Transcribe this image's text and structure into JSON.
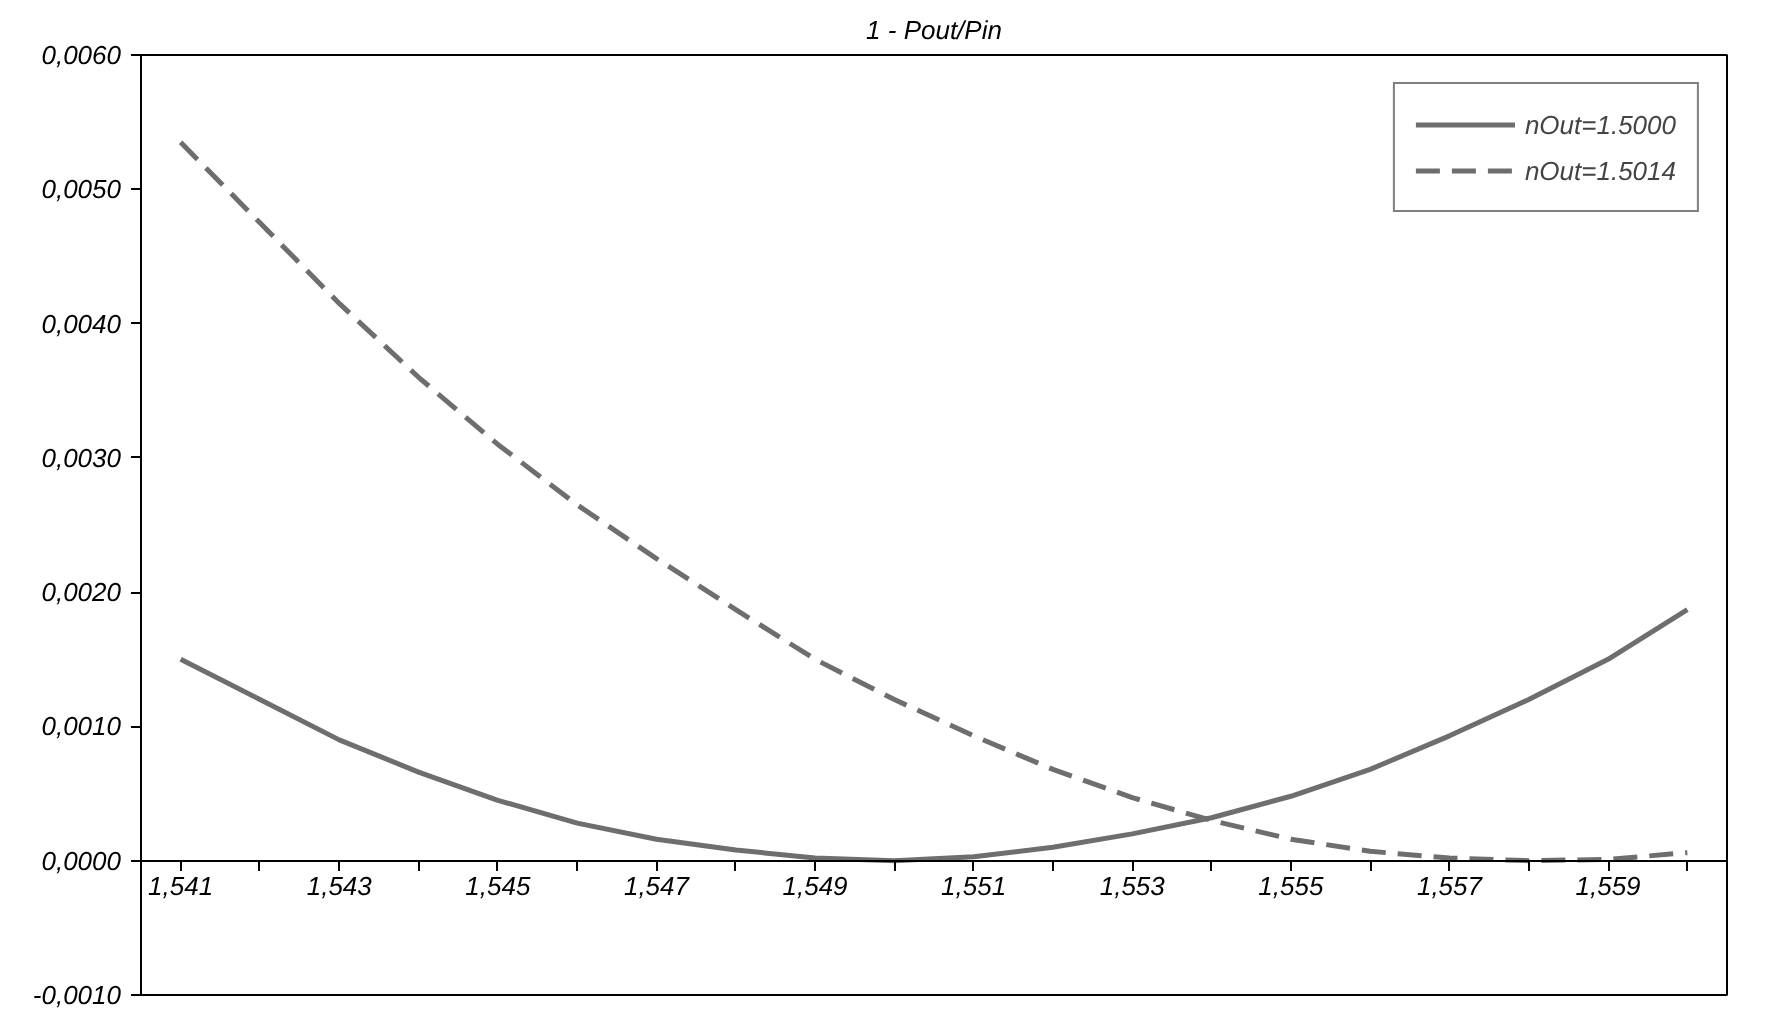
{
  "chart_data": {
    "type": "line",
    "title": "1 - Pout/Pin",
    "categories": [
      "1,541",
      null,
      "1,543",
      null,
      "1,545",
      null,
      "1,547",
      null,
      "1,549",
      null,
      "1,551",
      null,
      "1,553",
      null,
      "1,555",
      null,
      "1,557",
      null,
      "1,559",
      null
    ],
    "series": [
      {
        "name": "nOut=1.5000",
        "color": "#6e6e6e",
        "line_style": "solid",
        "values": [
          0.0015,
          0.0012,
          0.0009,
          0.00066,
          0.00045,
          0.00028,
          0.00016,
          8e-05,
          2e-05,
          0.0,
          3e-05,
          0.0001,
          0.0002,
          0.00032,
          0.00048,
          0.00068,
          0.00093,
          0.0012,
          0.0015,
          0.00187
        ]
      },
      {
        "name": "nOut=1.5014",
        "color": "#6e6e6e",
        "line_style": "dashed",
        "values": [
          0.00535,
          0.00475,
          0.00415,
          0.0036,
          0.0031,
          0.00265,
          0.00225,
          0.00187,
          0.0015,
          0.0012,
          0.00093,
          0.00068,
          0.00047,
          0.0003,
          0.00016,
          7e-05,
          2e-05,
          0.0,
          1e-05,
          6e-05
        ]
      }
    ],
    "ylim": [
      -0.001,
      0.006
    ],
    "yticks": [
      {
        "value": -0.001,
        "label": "-0,0010"
      },
      {
        "value": 0.0,
        "label": "0,0000"
      },
      {
        "value": 0.001,
        "label": "0,0010"
      },
      {
        "value": 0.002,
        "label": "0,0020"
      },
      {
        "value": 0.003,
        "label": "0,0030"
      },
      {
        "value": 0.004,
        "label": "0,0040"
      },
      {
        "value": 0.005,
        "label": "0,0050"
      },
      {
        "value": 0.006,
        "label": "0,0060"
      }
    ],
    "grid": false,
    "legend": "top right",
    "marker": "none"
  }
}
